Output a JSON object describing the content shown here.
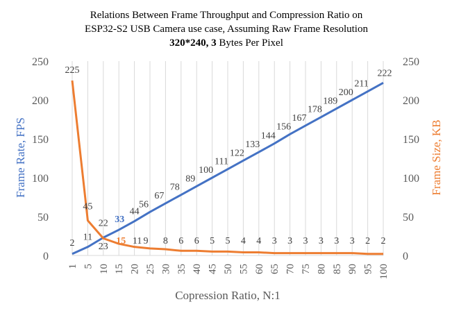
{
  "chart_data": {
    "type": "line",
    "title_lines": [
      "Relations Between Frame Throughput and Compression Ratio on",
      "ESP32-S2 USB Camera use case, Assuming Raw Frame Resolution"
    ],
    "title_bold_part": "320*240, 3",
    "title_rest_part": " Bytes Per Pixel",
    "xlabel": "Copression Ratio, N:1",
    "ylabel_left": "Frame Rate, FPS",
    "ylabel_right": "Frame Size, KB",
    "x": [
      "1",
      "5",
      "10",
      "15",
      "20",
      "25",
      "30",
      "35",
      "40",
      "45",
      "50",
      "55",
      "60",
      "65",
      "70",
      "75",
      "80",
      "85",
      "90",
      "95",
      "100"
    ],
    "ylim_left": [
      0,
      250
    ],
    "ylim_right": [
      0,
      250
    ],
    "yticks": [
      0,
      50,
      100,
      150,
      200,
      250
    ],
    "grid": "vertical",
    "series": [
      {
        "axis": "left",
        "color": "#4472c4",
        "values": [
          2,
          11,
          23,
          33,
          44,
          56,
          67,
          78,
          89,
          100,
          111,
          122,
          133,
          144,
          156,
          167,
          178,
          189,
          200,
          211,
          222
        ],
        "labels": [
          "2",
          "11",
          "23",
          "33",
          "44",
          "56",
          "67",
          "78",
          "89",
          "100",
          "111",
          "122",
          "133",
          "144",
          "156",
          "167",
          "178",
          "189",
          "200",
          "211",
          "222"
        ],
        "highlight_index": 3
      },
      {
        "axis": "right",
        "color": "#ed7d31",
        "values": [
          225,
          45,
          22,
          15,
          11,
          9,
          8,
          6,
          6,
          5,
          5,
          4,
          4,
          3,
          3,
          3,
          3,
          3,
          3,
          2,
          2
        ],
        "labels": [
          "225",
          "45",
          "22",
          "15",
          "11",
          "9",
          "8",
          "6",
          "6",
          "5",
          "5",
          "4",
          "4",
          "3",
          "3",
          "3",
          "3",
          "3",
          "3",
          "2",
          "2"
        ],
        "highlight_index": 3
      }
    ]
  }
}
